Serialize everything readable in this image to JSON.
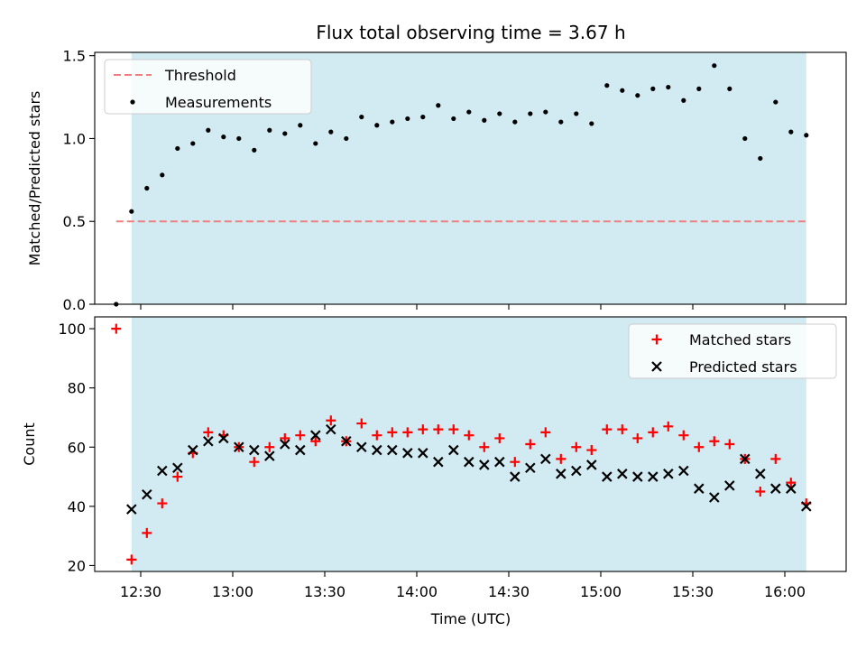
{
  "figure": {
    "title": "Flux total observing time = 3.67 h",
    "xlabel": "Time (UTC)"
  },
  "colors": {
    "observing_span": "#add8e6",
    "threshold": "#f08080",
    "measurements": "#000000",
    "matched": "#ff0000",
    "predicted": "#000000"
  },
  "chart_data": [
    {
      "type": "scatter",
      "panel": "top",
      "ylabel": "Matched/Predicted stars",
      "xlim": [
        "12:15",
        "16:20"
      ],
      "ylim": [
        0,
        1.52
      ],
      "x_ticks": [
        "12:30",
        "13:00",
        "13:30",
        "14:00",
        "14:30",
        "15:00",
        "15:30",
        "16:00"
      ],
      "y_ticks": [
        "0.0",
        "0.5",
        "1.0",
        "1.5"
      ],
      "grid": false,
      "legend_position": "top-left",
      "shaded_span": [
        "12:27",
        "16:07"
      ],
      "threshold": {
        "name": "Threshold",
        "value": 0.5,
        "x_range": [
          "12:22",
          "16:07"
        ],
        "style": "dashed"
      },
      "series": [
        {
          "name": "Measurements",
          "marker": "dot",
          "x": [
            "12:22",
            "12:27",
            "12:32",
            "12:37",
            "12:42",
            "12:47",
            "12:52",
            "12:57",
            "13:02",
            "13:07",
            "13:12",
            "13:17",
            "13:22",
            "13:27",
            "13:32",
            "13:37",
            "13:42",
            "13:47",
            "13:52",
            "13:57",
            "14:02",
            "14:07",
            "14:12",
            "14:17",
            "14:22",
            "14:27",
            "14:32",
            "14:37",
            "14:42",
            "14:47",
            "14:52",
            "14:57",
            "15:02",
            "15:07",
            "15:12",
            "15:17",
            "15:22",
            "15:27",
            "15:32",
            "15:37",
            "15:42",
            "15:47",
            "15:52",
            "15:57",
            "16:02",
            "16:07"
          ],
          "y": [
            0.0,
            0.56,
            0.7,
            0.78,
            0.94,
            0.97,
            1.05,
            1.01,
            1.0,
            0.93,
            1.05,
            1.03,
            1.08,
            0.97,
            1.04,
            1.0,
            1.13,
            1.08,
            1.1,
            1.12,
            1.13,
            1.2,
            1.12,
            1.16,
            1.11,
            1.15,
            1.1,
            1.15,
            1.16,
            1.1,
            1.15,
            1.09,
            1.32,
            1.29,
            1.26,
            1.3,
            1.31,
            1.23,
            1.3,
            1.44,
            1.3,
            1.0,
            0.88,
            1.22,
            1.04,
            1.02
          ]
        }
      ]
    },
    {
      "type": "scatter",
      "panel": "bottom",
      "ylabel": "Count",
      "xlim": [
        "12:15",
        "16:20"
      ],
      "ylim": [
        18,
        104
      ],
      "x_ticks": [
        "12:30",
        "13:00",
        "13:30",
        "14:00",
        "14:30",
        "15:00",
        "15:30",
        "16:00"
      ],
      "y_ticks": [
        "20",
        "40",
        "60",
        "80",
        "100"
      ],
      "grid": false,
      "legend_position": "top-right",
      "shaded_span": [
        "12:27",
        "16:07"
      ],
      "series": [
        {
          "name": "Matched stars",
          "marker": "plus",
          "x": [
            "12:22",
            "12:27",
            "12:32",
            "12:37",
            "12:42",
            "12:47",
            "12:52",
            "12:57",
            "13:02",
            "13:07",
            "13:12",
            "13:17",
            "13:22",
            "13:27",
            "13:32",
            "13:37",
            "13:42",
            "13:47",
            "13:52",
            "13:57",
            "14:02",
            "14:07",
            "14:12",
            "14:17",
            "14:22",
            "14:27",
            "14:32",
            "14:37",
            "14:42",
            "14:47",
            "14:52",
            "14:57",
            "15:02",
            "15:07",
            "15:12",
            "15:17",
            "15:22",
            "15:27",
            "15:32",
            "15:37",
            "15:42",
            "15:47",
            "15:52",
            "15:57",
            "16:02",
            "16:07"
          ],
          "y": [
            100,
            22,
            31,
            41,
            50,
            58,
            65,
            64,
            60,
            55,
            60,
            63,
            64,
            62,
            69,
            62,
            68,
            64,
            65,
            65,
            66,
            66,
            66,
            64,
            60,
            63,
            55,
            61,
            65,
            56,
            60,
            59,
            66,
            66,
            63,
            65,
            67,
            64,
            60,
            62,
            61,
            56,
            45,
            56,
            48,
            41
          ]
        },
        {
          "name": "Predicted stars",
          "marker": "x",
          "x": [
            "12:27",
            "12:32",
            "12:37",
            "12:42",
            "12:47",
            "12:52",
            "12:57",
            "13:02",
            "13:07",
            "13:12",
            "13:17",
            "13:22",
            "13:27",
            "13:32",
            "13:37",
            "13:42",
            "13:47",
            "13:52",
            "13:57",
            "14:02",
            "14:07",
            "14:12",
            "14:17",
            "14:22",
            "14:27",
            "14:32",
            "14:37",
            "14:42",
            "14:47",
            "14:52",
            "14:57",
            "15:02",
            "15:07",
            "15:12",
            "15:17",
            "15:22",
            "15:27",
            "15:32",
            "15:37",
            "15:42",
            "15:47",
            "15:52",
            "15:57",
            "16:02",
            "16:07"
          ],
          "y": [
            39,
            44,
            52,
            53,
            59,
            62,
            63,
            60,
            59,
            57,
            61,
            59,
            64,
            66,
            62,
            60,
            59,
            59,
            58,
            58,
            55,
            59,
            55,
            54,
            55,
            50,
            53,
            56,
            51,
            52,
            54,
            50,
            51,
            50,
            50,
            51,
            52,
            46,
            43,
            47,
            56,
            51,
            46,
            46,
            40
          ]
        }
      ]
    }
  ]
}
